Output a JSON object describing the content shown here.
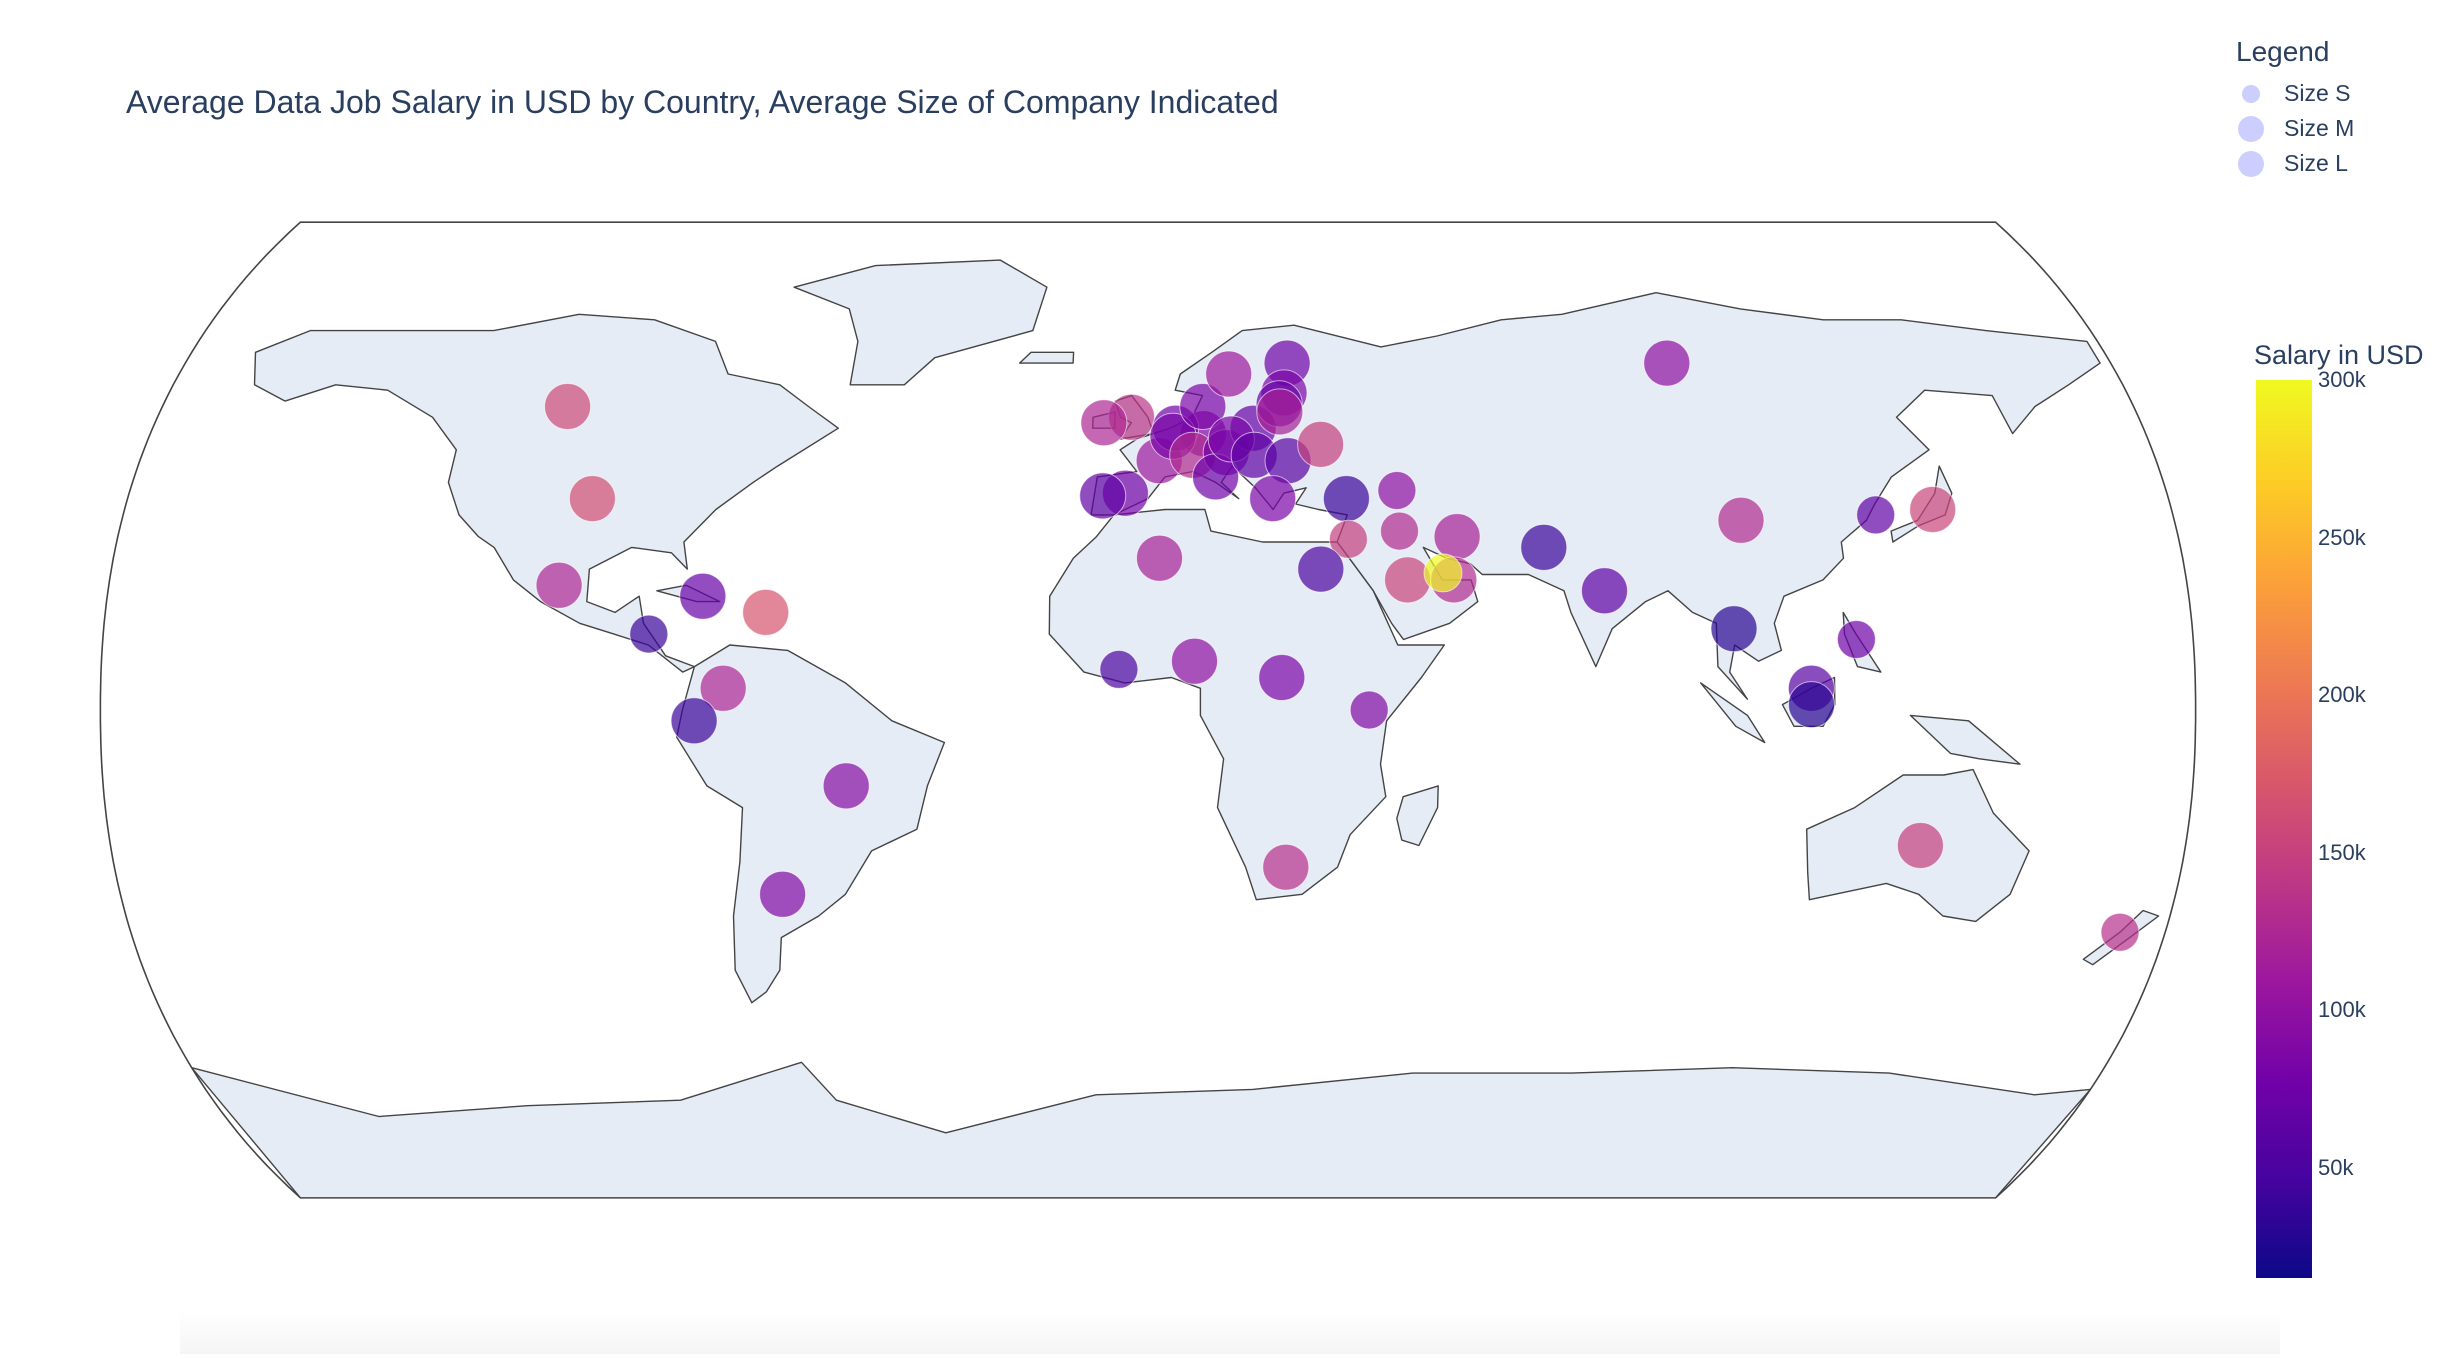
{
  "title": "Average Data Job Salary in USD by Country, Average Size of Company Indicated",
  "legend": {
    "title": "Legend",
    "items": [
      {
        "label": "Size S",
        "marker": 0.6
      },
      {
        "label": "Size M",
        "marker": 0.85
      },
      {
        "label": "Size L",
        "marker": 0.85
      }
    ]
  },
  "colorbar": {
    "title": "Salary in USD",
    "ticks": [
      "300k",
      "250k",
      "200k",
      "150k",
      "100k",
      "50k"
    ],
    "tick_values": [
      300000,
      250000,
      200000,
      150000,
      100000,
      50000
    ],
    "range": [
      15000,
      300000
    ],
    "colors": [
      "#0d0887",
      "#46039f",
      "#7201a8",
      "#9c179e",
      "#bd3786",
      "#d8576b",
      "#ed7953",
      "#fb9f3a",
      "#fdca26",
      "#f0f921"
    ]
  },
  "chart_data": {
    "type": "scatter",
    "projection": "natural earth",
    "title": "Average Data Job Salary in USD by Country, Average Size of Company Indicated",
    "points": [
      {
        "lon": -106,
        "lat": 56,
        "salary": 160000,
        "size": "L"
      },
      {
        "lon": -98,
        "lat": 39,
        "salary": 165000,
        "size": "L"
      },
      {
        "lon": -102,
        "lat": 23,
        "salary": 125000,
        "size": "L"
      },
      {
        "lon": -77,
        "lat": 21,
        "salary": 70000,
        "size": "L"
      },
      {
        "lon": -66,
        "lat": 18,
        "salary": 170000,
        "size": "L"
      },
      {
        "lon": -86,
        "lat": 14,
        "salary": 40000,
        "size": "M"
      },
      {
        "lon": -73,
        "lat": 4,
        "salary": 125000,
        "size": "L"
      },
      {
        "lon": -78,
        "lat": -2,
        "salary": 40000,
        "size": "L"
      },
      {
        "lon": -52,
        "lat": -14,
        "salary": 95000,
        "size": "L"
      },
      {
        "lon": -64,
        "lat": -34,
        "salary": 90000,
        "size": "L"
      },
      {
        "lon": -3,
        "lat": 54,
        "salary": 140000,
        "size": "L"
      },
      {
        "lon": -8,
        "lat": 53,
        "salary": 125000,
        "size": "L"
      },
      {
        "lon": 2,
        "lat": 46,
        "salary": 110000,
        "size": "L"
      },
      {
        "lon": -4,
        "lat": 40,
        "salary": 80000,
        "size": "L"
      },
      {
        "lon": -8,
        "lat": 39.5,
        "salary": 65000,
        "size": "L"
      },
      {
        "lon": 10,
        "lat": 51,
        "salary": 90000,
        "size": "L"
      },
      {
        "lon": 5,
        "lat": 52,
        "salary": 75000,
        "size": "L"
      },
      {
        "lon": 4.5,
        "lat": 50.5,
        "salary": 85000,
        "size": "L"
      },
      {
        "lon": 8,
        "lat": 47,
        "salary": 130000,
        "size": "L"
      },
      {
        "lon": 14,
        "lat": 47.5,
        "salary": 80000,
        "size": "L"
      },
      {
        "lon": 12,
        "lat": 43,
        "salary": 75000,
        "size": "L"
      },
      {
        "lon": 10,
        "lat": 56,
        "salary": 85000,
        "size": "L"
      },
      {
        "lon": 15,
        "lat": 62,
        "salary": 110000,
        "size": "L"
      },
      {
        "lon": 26,
        "lat": 64,
        "salary": 75000,
        "size": "L"
      },
      {
        "lon": 19,
        "lat": 52,
        "salary": 70000,
        "size": "L"
      },
      {
        "lon": 15,
        "lat": 50,
        "salary": 85000,
        "size": "L"
      },
      {
        "lon": 19,
        "lat": 47,
        "salary": 65000,
        "size": "L"
      },
      {
        "lon": 25,
        "lat": 46,
        "salary": 60000,
        "size": "L"
      },
      {
        "lon": 31,
        "lat": 49,
        "salary": 150000,
        "size": "L"
      },
      {
        "lon": 25,
        "lat": 58.5,
        "salary": 85000,
        "size": "L"
      },
      {
        "lon": 24,
        "lat": 56.5,
        "salary": 70000,
        "size": "L"
      },
      {
        "lon": 24,
        "lat": 55,
        "salary": 120000,
        "size": "L"
      },
      {
        "lon": 22,
        "lat": 39,
        "salary": 85000,
        "size": "L"
      },
      {
        "lon": 35,
        "lat": 39,
        "salary": 40000,
        "size": "L"
      },
      {
        "lon": 44,
        "lat": 40.5,
        "salary": 100000,
        "size": "M"
      },
      {
        "lon": 35,
        "lat": 31.5,
        "salary": 150000,
        "size": "M"
      },
      {
        "lon": 44,
        "lat": 33,
        "salary": 130000,
        "size": "M"
      },
      {
        "lon": 54,
        "lat": 32,
        "salary": 120000,
        "size": "L"
      },
      {
        "lon": 69,
        "lat": 30,
        "salary": 40000,
        "size": "L"
      },
      {
        "lon": 79,
        "lat": 22,
        "salary": 65000,
        "size": "L"
      },
      {
        "lon": 30,
        "lat": 26,
        "salary": 50000,
        "size": "L"
      },
      {
        "lon": 45,
        "lat": 24,
        "salary": 155000,
        "size": "L"
      },
      {
        "lon": 53,
        "lat": 24,
        "salary": 130000,
        "size": "L"
      },
      {
        "lon": 51.2,
        "lat": 25.3,
        "salary": 300000,
        "size": "M"
      },
      {
        "lon": 2,
        "lat": 28,
        "salary": 120000,
        "size": "L"
      },
      {
        "lon": -5,
        "lat": 7.5,
        "salary": 50000,
        "size": "M"
      },
      {
        "lon": 8,
        "lat": 9,
        "salary": 100000,
        "size": "L"
      },
      {
        "lon": 23,
        "lat": 6,
        "salary": 85000,
        "size": "L"
      },
      {
        "lon": 38,
        "lat": 0,
        "salary": 90000,
        "size": "M"
      },
      {
        "lon": 24,
        "lat": -29,
        "salary": 135000,
        "size": "L"
      },
      {
        "lon": 97,
        "lat": 64,
        "salary": 100000,
        "size": "L"
      },
      {
        "lon": 104,
        "lat": 35,
        "salary": 130000,
        "size": "L"
      },
      {
        "lon": 127.8,
        "lat": 36,
        "salary": 65000,
        "size": "M"
      },
      {
        "lon": 138,
        "lat": 37,
        "salary": 155000,
        "size": "L"
      },
      {
        "lon": 101,
        "lat": 15,
        "salary": 30000,
        "size": "L"
      },
      {
        "lon": 122,
        "lat": 13,
        "salary": 75000,
        "size": "M"
      },
      {
        "lon": 114,
        "lat": 4,
        "salary": 60000,
        "size": "L"
      },
      {
        "lon": 114,
        "lat": 1,
        "salary": 30000,
        "size": "L"
      },
      {
        "lon": 134,
        "lat": -25,
        "salary": 150000,
        "size": "L"
      },
      {
        "lon": 172,
        "lat": -41,
        "salary": 135000,
        "size": "M"
      }
    ]
  }
}
